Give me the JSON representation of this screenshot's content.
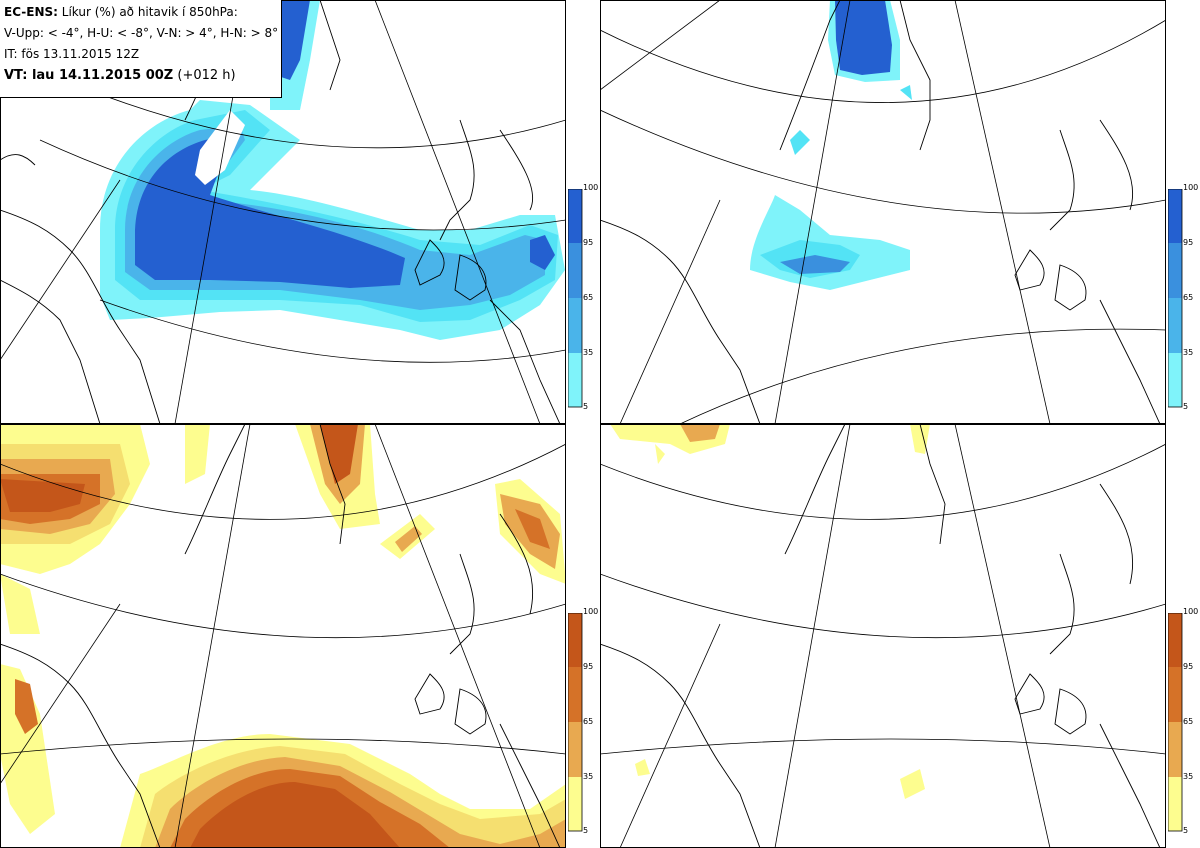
{
  "info": {
    "model": "EC-ENS:",
    "title": "Líkur (%) að hitavik í 850hPa:",
    "legend": "V-Upp: < -4°, H-U: < -8°, V-N: > 4°, H-N: > 8°",
    "init": "IT: fös 13.11.2015 12Z",
    "valid_bold": "VT: lau 14.11.2015 00Z",
    "lead": "(+012 h)"
  },
  "colorbar_ticks": [
    "100",
    "95",
    "65",
    "35",
    "5"
  ],
  "colors": {
    "cold": [
      "#7ff3fa",
      "#53e3f5",
      "#4ab4ea",
      "#3a90de",
      "#2460d0"
    ],
    "warm": [
      "#fdfd8f",
      "#f5df70",
      "#e8a950",
      "#d57228",
      "#c4561a"
    ]
  },
  "panels": [
    {
      "name": "upper-left",
      "scheme": "cold"
    },
    {
      "name": "upper-right",
      "scheme": "cold"
    },
    {
      "name": "lower-left",
      "scheme": "warm"
    },
    {
      "name": "lower-right",
      "scheme": "warm"
    }
  ]
}
